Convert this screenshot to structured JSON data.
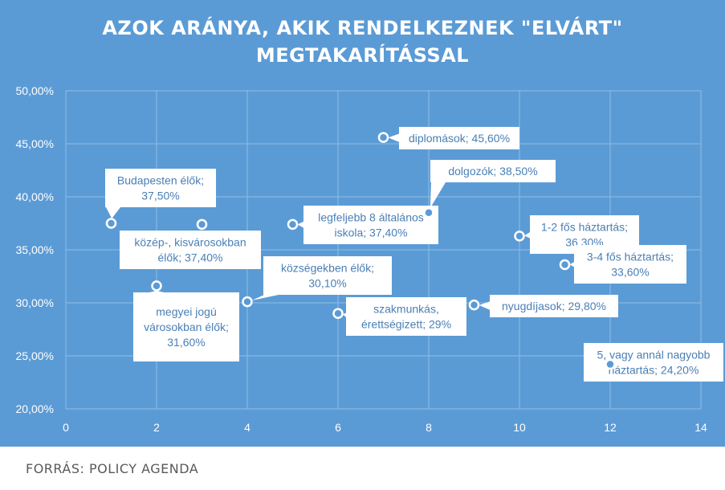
{
  "chart_data": {
    "type": "scatter",
    "title_lines": [
      "AZOK ARÁNYA,  AKIK RENDELKEZNEK \"ELVÁRT\"",
      "MEGTAKARÍTÁSSAL"
    ],
    "xlabel": "",
    "ylabel": "",
    "xlim": [
      0,
      14
    ],
    "ylim": [
      20,
      50
    ],
    "x_ticks": [
      "0",
      "2",
      "4",
      "6",
      "8",
      "10",
      "12",
      "14"
    ],
    "y_ticks": [
      "20,00%",
      "25,00%",
      "30,00%",
      "35,00%",
      "40,00%",
      "45,00%",
      "50,00%"
    ],
    "grid": true,
    "points": [
      {
        "x": 1,
        "y": 37.5,
        "label_lines": [
          "Budapesten élők;",
          "37,50%"
        ]
      },
      {
        "x": 2,
        "y": 31.6,
        "label_lines": [
          "megyei jogú",
          "városokban élők;",
          "31,60%"
        ]
      },
      {
        "x": 3,
        "y": 37.4,
        "label_lines": [
          "közép-, kisvárosokban",
          "élők; 37,40%"
        ]
      },
      {
        "x": 4,
        "y": 30.1,
        "label_lines": [
          "községekben élők;",
          "30,10%"
        ]
      },
      {
        "x": 5,
        "y": 37.4,
        "label_lines": [
          "legfeljebb 8 általános",
          "iskola; 37,40%"
        ]
      },
      {
        "x": 6,
        "y": 29.0,
        "label_lines": [
          "szakmunkás,",
          "érettségizett; 29%"
        ]
      },
      {
        "x": 7,
        "y": 45.6,
        "label_lines": [
          "diplomások; 45,60%"
        ]
      },
      {
        "x": 8,
        "y": 38.5,
        "label_lines": [
          "dolgozók; 38,50%"
        ]
      },
      {
        "x": 9,
        "y": 29.8,
        "label_lines": [
          "nyugdíjasok; 29,80%"
        ]
      },
      {
        "x": 10,
        "y": 36.3,
        "label_lines": [
          "1-2 fős háztartás;",
          "36,30%"
        ]
      },
      {
        "x": 11,
        "y": 33.6,
        "label_lines": [
          "3-4 fős háztartás;",
          "33,60%"
        ]
      },
      {
        "x": 12,
        "y": 24.2,
        "label_lines": [
          "5, vagy annál nagyobb",
          "háztartás; 24,20%"
        ]
      }
    ],
    "colors": {
      "background": "#5b9bd5",
      "grid": "#8fbde6",
      "marker_fill": "#5b9bd5",
      "marker_stroke": "#ffffff",
      "label_text": "#4a7fb5"
    }
  },
  "source": "FORRÁS: POLICY AGENDA"
}
